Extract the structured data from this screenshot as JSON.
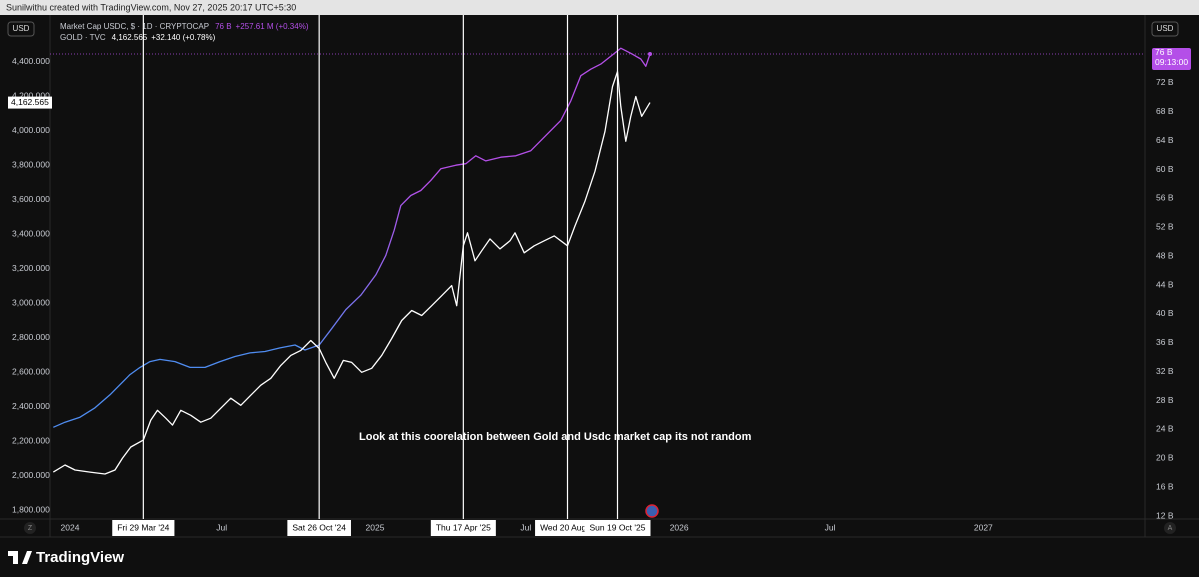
{
  "header": "Sunilwithu created with TradingView.com, Nov 27, 2025 20:17 UTC+5:30",
  "footer_logo": "TradingView",
  "chart_data": {
    "type": "line",
    "currency_left": "USD",
    "currency_right": "USD",
    "annotation": "Look at this coorelation between Gold and Usdc market cap its not random",
    "xlim": [
      "2023-12-08",
      "2027-07-14"
    ],
    "xticks": [
      {
        "value": "2024-01-01",
        "label": "2024"
      },
      {
        "value": "2024-07-01",
        "label": "Jul"
      },
      {
        "value": "2025-01-01",
        "label": "2025"
      },
      {
        "value": "2025-07-01",
        "label": "Jul"
      },
      {
        "value": "2026-01-01",
        "label": "2026"
      },
      {
        "value": "2026-07-01",
        "label": "Jul"
      },
      {
        "value": "2027-01-01",
        "label": "2027"
      }
    ],
    "ylim": [
      1750,
      4670
    ],
    "yticks": [
      {
        "value": 1800,
        "label": "1,800.000"
      },
      {
        "value": 2000,
        "label": "2,000.000"
      },
      {
        "value": 2200,
        "label": "2,200.000"
      },
      {
        "value": 2400,
        "label": "2,400.000"
      },
      {
        "value": 2600,
        "label": "2,600.000"
      },
      {
        "value": 2800,
        "label": "2,800.000"
      },
      {
        "value": 3000,
        "label": "3,000.000"
      },
      {
        "value": 3200,
        "label": "3,200.000"
      },
      {
        "value": 3400,
        "label": "3,400.000"
      },
      {
        "value": 3600,
        "label": "3,600.000"
      },
      {
        "value": 3800,
        "label": "3,800.000"
      },
      {
        "value": 4000,
        "label": "4,000.000"
      },
      {
        "value": 4200,
        "label": "4,200.000"
      },
      {
        "value": 4400,
        "label": "4,400.000"
      }
    ],
    "y2lim": [
      11.6,
      81.4
    ],
    "y2ticks": [
      {
        "value": 12,
        "label": "12 B"
      },
      {
        "value": 16,
        "label": "16 B"
      },
      {
        "value": 20,
        "label": "20 B"
      },
      {
        "value": 24,
        "label": "24 B"
      },
      {
        "value": 28,
        "label": "28 B"
      },
      {
        "value": 32,
        "label": "32 B"
      },
      {
        "value": 36,
        "label": "36 B"
      },
      {
        "value": 40,
        "label": "40 B"
      },
      {
        "value": 44,
        "label": "44 B"
      },
      {
        "value": 48,
        "label": "48 B"
      },
      {
        "value": 52,
        "label": "52 B"
      },
      {
        "value": 56,
        "label": "56 B"
      },
      {
        "value": 60,
        "label": "60 B"
      },
      {
        "value": 64,
        "label": "64 B"
      },
      {
        "value": 68,
        "label": "68 B"
      },
      {
        "value": 72,
        "label": "72 B"
      }
    ],
    "markers": [
      {
        "x": "2024-03-29",
        "label": "Fri 29 Mar '24"
      },
      {
        "x": "2024-10-26",
        "label": "Sat 26 Oct '24"
      },
      {
        "x": "2025-04-17",
        "label": "Thu 17 Apr '25"
      },
      {
        "x": "2025-08-20",
        "label": "Wed 20 Aug '2"
      },
      {
        "x": "2025-10-19",
        "label": "Sun 19 Oct '25"
      }
    ],
    "series": [
      {
        "name": "Market Cap USDC, $ · 1D · CRYPTOCAP",
        "axis": "y2",
        "colors": [
          "#4f8cf0",
          "#b44fe8"
        ],
        "last_label": "76 B",
        "change_label": "+257.61 M (+0.34%)",
        "countdown": "09:13:00",
        "x": [
          "2023-12-12",
          "2023-12-26",
          "2024-01-13",
          "2024-01-31",
          "2024-02-18",
          "2024-03-01",
          "2024-03-13",
          "2024-03-25",
          "2024-04-06",
          "2024-04-18",
          "2024-05-06",
          "2024-05-24",
          "2024-06-11",
          "2024-06-29",
          "2024-07-17",
          "2024-08-04",
          "2024-08-22",
          "2024-09-09",
          "2024-09-27",
          "2024-10-09",
          "2024-10-26",
          "2024-11-09",
          "2024-11-27",
          "2024-12-15",
          "2025-01-02",
          "2025-01-14",
          "2025-01-24",
          "2025-02-01",
          "2025-02-13",
          "2025-02-25",
          "2025-03-09",
          "2025-03-21",
          "2025-04-08",
          "2025-04-20",
          "2025-05-02",
          "2025-05-14",
          "2025-06-01",
          "2025-06-19",
          "2025-07-07",
          "2025-07-25",
          "2025-08-12",
          "2025-08-24",
          "2025-09-05",
          "2025-09-17",
          "2025-09-29",
          "2025-10-11",
          "2025-10-23",
          "2025-11-04",
          "2025-11-16",
          "2025-11-22",
          "2025-11-27"
        ],
        "values": [
          24.3,
          25.0,
          25.7,
          27.0,
          28.8,
          30.2,
          31.6,
          32.6,
          33.4,
          33.7,
          33.4,
          32.6,
          32.6,
          33.4,
          34.1,
          34.6,
          34.8,
          35.3,
          35.7,
          35.0,
          35.7,
          37.8,
          40.6,
          42.6,
          45.4,
          48.1,
          51.6,
          55.0,
          56.4,
          57.1,
          58.5,
          60.1,
          60.6,
          60.8,
          61.9,
          61.2,
          61.7,
          61.9,
          62.6,
          64.7,
          66.8,
          69.5,
          73.0,
          73.9,
          74.6,
          75.7,
          76.8,
          76.1,
          75.3,
          74.3,
          76.0
        ]
      },
      {
        "name": "GOLD · TVC",
        "color": "#ffffff",
        "last_label": "4,162.565",
        "change_label": "+32.140 (+0.78%)",
        "x": [
          "2023-12-12",
          "2023-12-26",
          "2024-01-07",
          "2024-01-25",
          "2024-02-12",
          "2024-02-24",
          "2024-03-04",
          "2024-03-14",
          "2024-03-29",
          "2024-04-07",
          "2024-04-15",
          "2024-04-25",
          "2024-05-03",
          "2024-05-13",
          "2024-05-25",
          "2024-06-06",
          "2024-06-18",
          "2024-06-30",
          "2024-07-12",
          "2024-07-24",
          "2024-08-05",
          "2024-08-17",
          "2024-08-29",
          "2024-09-10",
          "2024-09-22",
          "2024-10-04",
          "2024-10-16",
          "2024-10-26",
          "2024-11-03",
          "2024-11-13",
          "2024-11-24",
          "2024-12-04",
          "2024-12-16",
          "2024-12-28",
          "2025-01-09",
          "2025-01-21",
          "2025-02-02",
          "2025-02-14",
          "2025-02-26",
          "2025-03-10",
          "2025-03-22",
          "2025-04-03",
          "2025-04-09",
          "2025-04-17",
          "2025-04-22",
          "2025-05-01",
          "2025-05-09",
          "2025-05-19",
          "2025-05-31",
          "2025-06-12",
          "2025-06-18",
          "2025-06-29",
          "2025-07-11",
          "2025-07-23",
          "2025-08-04",
          "2025-08-20",
          "2025-08-29",
          "2025-09-10",
          "2025-09-22",
          "2025-10-04",
          "2025-10-13",
          "2025-10-19",
          "2025-10-23",
          "2025-10-29",
          "2025-11-04",
          "2025-11-10",
          "2025-11-17",
          "2025-11-27"
        ],
        "values": [
          2022,
          2063,
          2034,
          2022,
          2011,
          2034,
          2103,
          2167,
          2207,
          2323,
          2380,
          2334,
          2294,
          2380,
          2351,
          2311,
          2334,
          2392,
          2450,
          2409,
          2467,
          2525,
          2565,
          2640,
          2698,
          2727,
          2784,
          2738,
          2657,
          2565,
          2669,
          2657,
          2600,
          2623,
          2698,
          2796,
          2900,
          2958,
          2929,
          2986,
          3044,
          3102,
          2986,
          3333,
          3408,
          3246,
          3304,
          3373,
          3315,
          3362,
          3408,
          3292,
          3333,
          3362,
          3390,
          3333,
          3448,
          3592,
          3765,
          3996,
          4256,
          4342,
          4140,
          3938,
          4083,
          4198,
          4083,
          4162.565
        ]
      }
    ]
  }
}
